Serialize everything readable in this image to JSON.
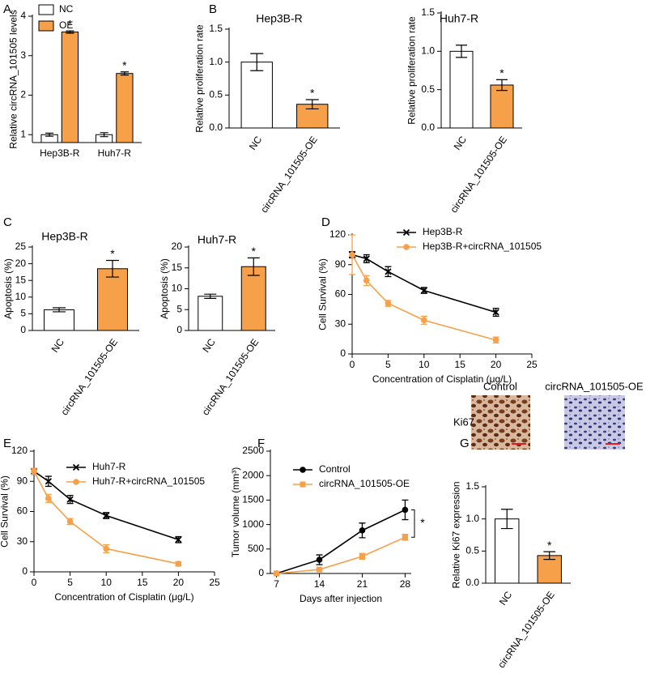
{
  "chart_data": [
    {
      "panel": "A",
      "type": "bar",
      "categories": [
        "Hep3B-R",
        "Huh7-R"
      ],
      "series": [
        {
          "name": "NC",
          "color": "#ffffff",
          "values": [
            1,
            1
          ],
          "errors": [
            0.04,
            0.05
          ]
        },
        {
          "name": "OE",
          "color": "#f7a04a",
          "values": [
            3.6,
            2.55
          ],
          "errors": [
            0.03,
            0.04
          ],
          "significance": [
            "*",
            "*"
          ]
        }
      ],
      "y_label": "Relative circRNA_101505 levels",
      "ylim": [
        0.8,
        4
      ],
      "yticks": [
        1,
        2,
        3,
        4
      ]
    },
    {
      "panel": "B",
      "type": "bar",
      "title": "Hep3B-R",
      "categories": [
        "NC",
        "circRNA_101505-OE"
      ],
      "values": [
        1.0,
        0.36
      ],
      "errors": [
        0.13,
        0.07
      ],
      "colors": [
        "#ffffff",
        "#f7a04a"
      ],
      "significance": [
        null,
        "*"
      ],
      "y_label": "Relative proliferation rate",
      "ylim": [
        0,
        1.5
      ],
      "yticks": [
        {
          "value": 0,
          "label": "0.0"
        },
        {
          "value": 0.5,
          "label": "0.5"
        },
        {
          "value": 1,
          "label": "1.0"
        },
        {
          "value": 1.5,
          "label": "1.5"
        }
      ]
    },
    {
      "type": "bar",
      "title": "Huh7-R",
      "categories": [
        "NC",
        "circRNA_101505-OE"
      ],
      "values": [
        1.0,
        0.56
      ],
      "errors": [
        0.08,
        0.07
      ],
      "colors": [
        "#ffffff",
        "#f7a04a"
      ],
      "significance": [
        null,
        "*"
      ],
      "y_label": "Relative proliferation rate",
      "ylim": [
        0,
        1.5
      ],
      "yticks": [
        {
          "value": 0,
          "label": "0.0"
        },
        {
          "value": 0.5,
          "label": "0.5"
        },
        {
          "value": 1,
          "label": "1.0"
        },
        {
          "value": 1.5,
          "label": "1.5"
        }
      ]
    },
    {
      "panel": "C",
      "type": "bar",
      "title": "Hep3B-R",
      "categories": [
        "NC",
        "circRNA_101505-OE"
      ],
      "values": [
        6.2,
        18.5
      ],
      "errors": [
        0.6,
        2.5
      ],
      "colors": [
        "#ffffff",
        "#f7a04a"
      ],
      "significance": [
        null,
        "*"
      ],
      "y_label": "Apoptosis (%)",
      "ylim": [
        0,
        25
      ],
      "yticks": [
        0,
        5,
        10,
        15,
        20,
        25
      ]
    },
    {
      "type": "bar",
      "title": "Huh7-R",
      "categories": [
        "NC",
        "circRNA_101505-OE"
      ],
      "values": [
        8.2,
        15.3
      ],
      "errors": [
        0.5,
        2.1
      ],
      "colors": [
        "#ffffff",
        "#f7a04a"
      ],
      "significance": [
        null,
        "*"
      ],
      "y_label": "Apoptosis (%)",
      "ylim": [
        0,
        20
      ],
      "yticks": [
        0,
        5,
        10,
        15,
        20
      ]
    },
    {
      "panel": "D",
      "type": "line",
      "x": [
        0,
        2,
        5,
        10,
        20
      ],
      "series": [
        {
          "name": "Hep3B-R",
          "color": "#000000",
          "marker": "x",
          "values": [
            100,
            96,
            83,
            64,
            42
          ],
          "errors": [
            3,
            4,
            5,
            3,
            4
          ]
        },
        {
          "name": "Hep3B-R+circRNA_101505",
          "color": "#f7a04a",
          "marker": "circle",
          "values": [
            100,
            74,
            51,
            34,
            14
          ],
          "errors": [
            20,
            5,
            3,
            4,
            3
          ]
        }
      ],
      "x_label": "Concentration of Cisplatin (μg/L)",
      "y_label": "Cell Survival (%)",
      "xlim": [
        0,
        25
      ],
      "xticks": [
        0,
        5,
        10,
        15,
        20,
        25
      ],
      "ylim": [
        0,
        120
      ],
      "yticks": [
        0,
        30,
        60,
        90,
        120
      ]
    },
    {
      "panel": "E",
      "type": "line",
      "x": [
        0,
        2,
        5,
        10,
        20
      ],
      "series": [
        {
          "name": "Huh7-R",
          "color": "#000000",
          "marker": "x",
          "values": [
            100,
            90,
            72,
            56,
            32
          ],
          "errors": [
            3,
            5,
            4,
            3,
            3
          ]
        },
        {
          "name": "Huh7-R+circRNA_101505",
          "color": "#f7a04a",
          "marker": "circle",
          "values": [
            100,
            73,
            50,
            23,
            8
          ],
          "errors": [
            3,
            4,
            3,
            4,
            2
          ]
        }
      ],
      "x_label": "Concentration of Cisplatin (μg/L)",
      "y_label": "Cell Survival (%)",
      "xlim": [
        0,
        25
      ],
      "xticks": [
        0,
        5,
        10,
        15,
        20,
        25
      ],
      "ylim": [
        0,
        120
      ],
      "yticks": [
        0,
        30,
        60,
        90,
        120
      ]
    },
    {
      "panel": "F",
      "type": "line",
      "x": [
        7,
        14,
        21,
        28
      ],
      "series": [
        {
          "name": "Control",
          "color": "#000000",
          "marker": "circle",
          "values": [
            0,
            280,
            880,
            1300
          ],
          "errors": [
            0,
            100,
            150,
            200
          ]
        },
        {
          "name": "circRNA_101505-OE",
          "color": "#f7a04a",
          "marker": "square",
          "values": [
            0,
            80,
            350,
            740
          ],
          "errors": [
            0,
            20,
            60,
            60
          ]
        }
      ],
      "x_label": "Days after injection",
      "y_label": "Tumor volume (mm³)",
      "annotation": "*",
      "xlim": [
        6,
        29
      ],
      "xticks": [
        7,
        14,
        21,
        28
      ],
      "ylim": [
        0,
        2500
      ],
      "yticks": [
        0,
        500,
        1000,
        1500,
        2000,
        2500
      ]
    },
    {
      "panel": "G",
      "type": "bar",
      "image_labels": [
        "Control",
        "circRNA_101505-OE"
      ],
      "row_label": "Ki67",
      "categories": [
        "NC",
        "circRNA_101505-OE"
      ],
      "values": [
        1.0,
        0.43
      ],
      "errors": [
        0.15,
        0.06
      ],
      "colors": [
        "#ffffff",
        "#f7a04a"
      ],
      "significance": [
        null,
        "*"
      ],
      "y_label": "Relative Ki67 expression",
      "ylim": [
        0,
        1.5
      ],
      "yticks": [
        {
          "value": 0,
          "label": "0.0"
        },
        {
          "value": 0.5,
          "label": "0.5"
        },
        {
          "value": 1,
          "label": "1.0"
        },
        {
          "value": 1.5,
          "label": "1.5"
        }
      ]
    }
  ]
}
